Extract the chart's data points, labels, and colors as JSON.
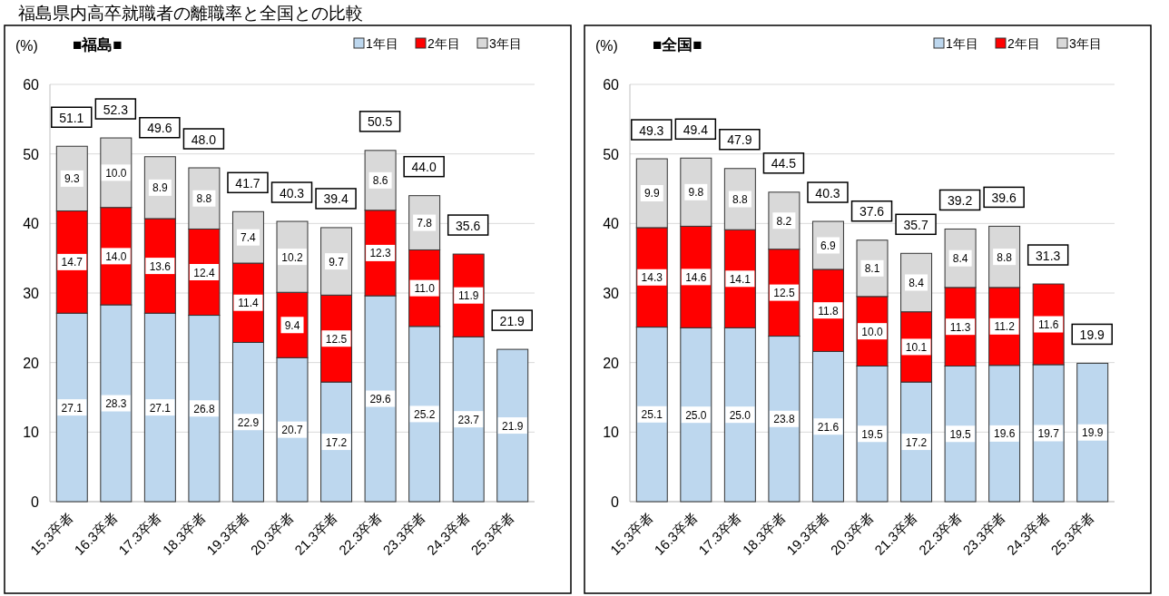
{
  "chart_data": [
    {
      "type": "bar",
      "stacked": true,
      "title": "福島県内高卒就職者の離職率と全国との比較",
      "subtitle": "■福島■",
      "ylabel": "(%)",
      "categories": [
        "15.3卒者",
        "16.3卒者",
        "17.3卒者",
        "18.3卒者",
        "19.3卒者",
        "20.3卒者",
        "21.3卒者",
        "22.3卒者",
        "23.3卒者",
        "24.3卒者",
        "25.3卒者"
      ],
      "series": [
        {
          "name": "1年目",
          "color": "#bdd7ee",
          "values": [
            27.1,
            28.3,
            27.1,
            26.8,
            22.9,
            20.7,
            17.2,
            29.6,
            25.2,
            23.7,
            21.9
          ],
          "value_labels": [
            "27.1",
            "28.3",
            "27.1",
            "26.8",
            "22.9",
            "20.7",
            "17.2",
            "29.6",
            "25.2",
            "23.7",
            "21.9"
          ]
        },
        {
          "name": "2年目",
          "color": "#ff0000",
          "values": [
            14.7,
            14.0,
            13.6,
            12.4,
            11.4,
            9.4,
            12.5,
            12.3,
            11.0,
            11.9,
            null
          ],
          "value_labels": [
            "14.7",
            "14.0",
            "13.6",
            "12.4",
            "11.4",
            "9.4",
            "12.5",
            "12.3",
            "11.0",
            "11.9",
            null
          ]
        },
        {
          "name": "3年目",
          "color": "#d9d9d9",
          "values": [
            9.3,
            10.0,
            8.9,
            8.8,
            7.4,
            10.2,
            9.7,
            8.6,
            7.8,
            null,
            null
          ],
          "value_labels": [
            "9.3",
            "10.0",
            "8.9",
            "8.8",
            "7.4",
            "10.2",
            "9.7",
            "8.6",
            "7.8",
            null,
            null
          ]
        }
      ],
      "totals": [
        "51.1",
        "52.3",
        "49.6",
        "48.0",
        "41.7",
        "40.3",
        "39.4",
        "50.5",
        "44.0",
        "35.6",
        "21.9"
      ],
      "ylim": [
        0,
        60
      ],
      "yticks": [
        0,
        10,
        20,
        30,
        40,
        50,
        60
      ],
      "grid": "y",
      "legend": "top right"
    },
    {
      "type": "bar",
      "stacked": true,
      "subtitle": "■全国■",
      "ylabel": "(%)",
      "categories": [
        "15.3卒者",
        "16.3卒者",
        "17.3卒者",
        "18.3卒者",
        "19.3卒者",
        "20.3卒者",
        "21.3卒者",
        "22.3卒者",
        "23.3卒者",
        "24.3卒者",
        "25.3卒者"
      ],
      "series": [
        {
          "name": "1年目",
          "color": "#bdd7ee",
          "values": [
            25.1,
            25.0,
            25.0,
            23.8,
            21.6,
            19.5,
            17.2,
            19.5,
            19.6,
            19.7,
            19.9
          ],
          "value_labels": [
            "25.1",
            "25.0",
            "25.0",
            "23.8",
            "21.6",
            "19.5",
            "17.2",
            "19.5",
            "19.6",
            "19.7",
            "19.9"
          ]
        },
        {
          "name": "2年目",
          "color": "#ff0000",
          "values": [
            14.3,
            14.6,
            14.1,
            12.5,
            11.8,
            10.0,
            10.1,
            11.3,
            11.2,
            11.6,
            null
          ],
          "value_labels": [
            "14.3",
            "14.6",
            "14.1",
            "12.5",
            "11.8",
            "10.0",
            "10.1",
            "11.3",
            "11.2",
            "11.6",
            null
          ]
        },
        {
          "name": "3年目",
          "color": "#d9d9d9",
          "values": [
            9.9,
            9.8,
            8.8,
            8.2,
            6.9,
            8.1,
            8.4,
            8.4,
            8.8,
            null,
            null
          ],
          "value_labels": [
            "9.9",
            "9.8",
            "8.8",
            "8.2",
            "6.9",
            "8.1",
            "8.4",
            "8.4",
            "8.8",
            null,
            null
          ]
        }
      ],
      "totals": [
        "49.3",
        "49.4",
        "47.9",
        "44.5",
        "40.3",
        "37.6",
        "35.7",
        "39.2",
        "39.6",
        "31.3",
        "19.9"
      ],
      "ylim": [
        0,
        60
      ],
      "yticks": [
        0,
        10,
        20,
        30,
        40,
        50,
        60
      ],
      "grid": "y",
      "legend": "top right"
    }
  ]
}
